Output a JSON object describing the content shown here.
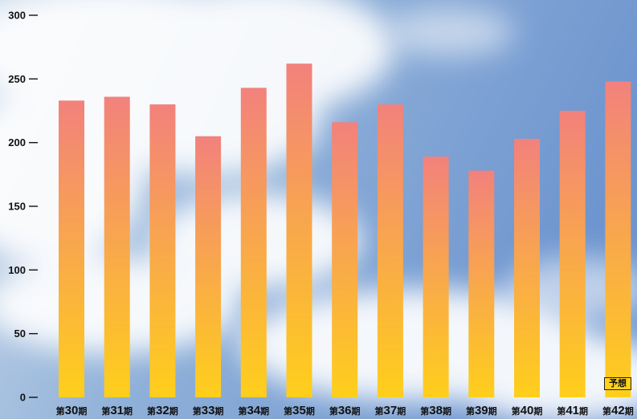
{
  "chart_data": {
    "type": "bar",
    "title": "",
    "xlabel": "",
    "ylabel": "",
    "ylim": [
      0,
      300
    ],
    "yticks": [
      "300",
      "250",
      "200",
      "150",
      "100",
      "50",
      "0"
    ],
    "categories": [
      "第30期",
      "第31期",
      "第32期",
      "第33期",
      "第34期",
      "第35期",
      "第36期",
      "第37期",
      "第38期",
      "第39期",
      "第40期",
      "第41期",
      "第42期"
    ],
    "values": [
      233,
      236,
      230,
      205,
      243,
      262,
      216,
      230,
      189,
      178,
      203,
      225,
      248
    ],
    "forecast_label": "予想",
    "bar_gradient": {
      "top": "#f2817c",
      "bottom": "#ffcf1b"
    },
    "grid": false,
    "legend": "none"
  }
}
